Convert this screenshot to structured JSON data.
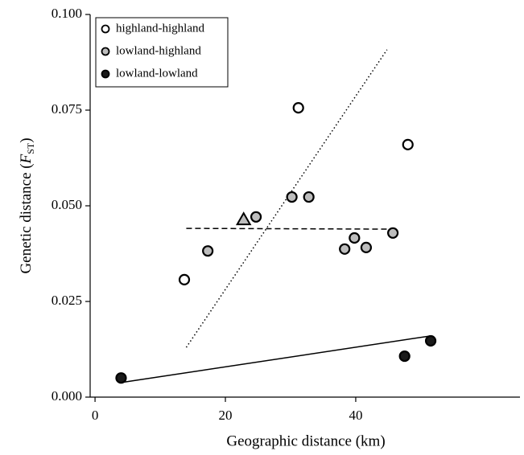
{
  "chart_data": {
    "type": "scatter",
    "xlabel": "Geographic distance (km)",
    "ylabel_parts": [
      "Genetic distance (",
      "F",
      "ST",
      ")"
    ],
    "xlim": [
      -0.75,
      65.2
    ],
    "ylim": [
      0,
      0.1
    ],
    "xticks": [
      0,
      20,
      40
    ],
    "yticks": [
      {
        "value": 0,
        "label": "0.000"
      },
      {
        "value": 0.025,
        "label": "0.025"
      },
      {
        "value": 0.05,
        "label": "0.050"
      },
      {
        "value": 0.075,
        "label": "0.075"
      },
      {
        "value": 0.1,
        "label": "0.100"
      }
    ],
    "legend": "top-left",
    "series": [
      {
        "name": "highland-highland",
        "color": "#ffffff",
        "x": [
          13.7,
          31.2,
          48.0
        ],
        "values": [
          0.0307,
          0.0756,
          0.066
        ]
      },
      {
        "name": "lowland-highland",
        "color": "#bdbdbd",
        "x": [
          17.3,
          24.7,
          30.2,
          32.8,
          38.3,
          41.6,
          39.8,
          45.7
        ],
        "values": [
          0.0382,
          0.0471,
          0.0523,
          0.0523,
          0.0387,
          0.0391,
          0.0416,
          0.0429
        ]
      },
      {
        "name": "lowland-lowland",
        "color": "#1a1a1a",
        "x": [
          4.0,
          51.5,
          47.5
        ],
        "values": [
          0.005,
          0.0147,
          0.0107
        ]
      }
    ],
    "highlight_point": {
      "x": 22.8,
      "y": 0.0464,
      "color": "#bdbdbd"
    },
    "trend_lines": [
      {
        "style": "dotted",
        "x": [
          14.0,
          44.8
        ],
        "values": [
          0.013,
          0.0908
        ]
      },
      {
        "style": "dashed",
        "x": [
          14.0,
          45.2
        ],
        "values": [
          0.0441,
          0.0439
        ]
      },
      {
        "style": "solid",
        "x": [
          4.0,
          51.5
        ],
        "values": [
          0.0038,
          0.016
        ]
      }
    ]
  }
}
